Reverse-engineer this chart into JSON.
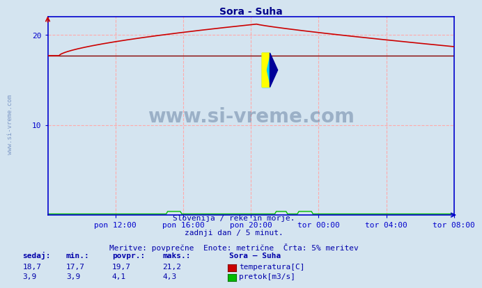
{
  "title": "Sora - Suha",
  "bg_color": "#d4e4f0",
  "plot_bg_color": "#d4e4f0",
  "grid_color": "#ffaaaa",
  "axis_color": "#0000cc",
  "title_color": "#000088",
  "text_color": "#0000aa",
  "xlabel_ticks": [
    "pon 12:00",
    "pon 16:00",
    "pon 20:00",
    "tor 00:00",
    "tor 04:00",
    "tor 08:00"
  ],
  "ylim": [
    0,
    22
  ],
  "yticks": [
    10,
    20
  ],
  "xlim": [
    0,
    288
  ],
  "temp_color": "#cc0000",
  "flat_color": "#880000",
  "flow_color": "#00bb00",
  "watermark_color": "#1a3a6a",
  "sidebar_color": "#4466aa",
  "footer_line1": "Slovenija / reke in morje.",
  "footer_line2": "zadnji dan / 5 minut.",
  "footer_line3": "Meritve: povprečne  Enote: metrične  Črta: 5% meritev",
  "stats_headers": [
    "sedaj:",
    "min.:",
    "povpr.:",
    "maks.:"
  ],
  "stats_temp": [
    "18,7",
    "17,7",
    "19,7",
    "21,2"
  ],
  "stats_flow": [
    "3,9",
    "3,9",
    "4,1",
    "4,3"
  ],
  "legend_title": "Sora – Suha",
  "legend_temp": "temperatura[C]",
  "legend_flow": "pretok[m3/s]",
  "sidebar_text": "www.si-vreme.com",
  "x_tick_pos": [
    48,
    96,
    144,
    192,
    240,
    288
  ]
}
